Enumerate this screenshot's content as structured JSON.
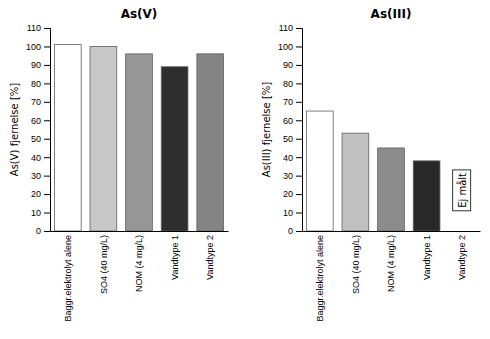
{
  "chart_data": [
    {
      "type": "bar",
      "title": "As(V)",
      "ylabel": "As(V) fjernelse [%]",
      "categories": [
        "Baggr.elektrolyt alene",
        "SO4 (40 mg/L)",
        "NOM (4 mg/L)",
        "Vandtype 1",
        "Vandtype 2"
      ],
      "values": [
        101,
        100,
        96,
        89,
        96
      ],
      "colors": [
        "#ffffff",
        "#c8c8c8",
        "#969696",
        "#2e2e2e",
        "#848484"
      ],
      "ylim": [
        0,
        110
      ],
      "yticks": [
        0,
        10,
        20,
        30,
        40,
        50,
        60,
        70,
        80,
        90,
        100,
        110
      ],
      "grid": false
    },
    {
      "type": "bar",
      "title": "As(III)",
      "ylabel": "As(III) fjernelse [%]",
      "categories": [
        "Baggr.elektrolyt alene",
        "SO4 (40 mg/L)",
        "NOM (4 mg/L)",
        "Vandtype 1",
        "Vandtype 2"
      ],
      "values": [
        65,
        53,
        45,
        38,
        null
      ],
      "colors": [
        "#ffffff",
        "#c0c0c0",
        "#8c8c8c",
        "#282828",
        "#ffffff"
      ],
      "ylim": [
        0,
        110
      ],
      "yticks": [
        0,
        10,
        20,
        30,
        40,
        50,
        60,
        70,
        80,
        90,
        100,
        110
      ],
      "grid": false,
      "annotations": [
        "Ej målt"
      ]
    }
  ]
}
